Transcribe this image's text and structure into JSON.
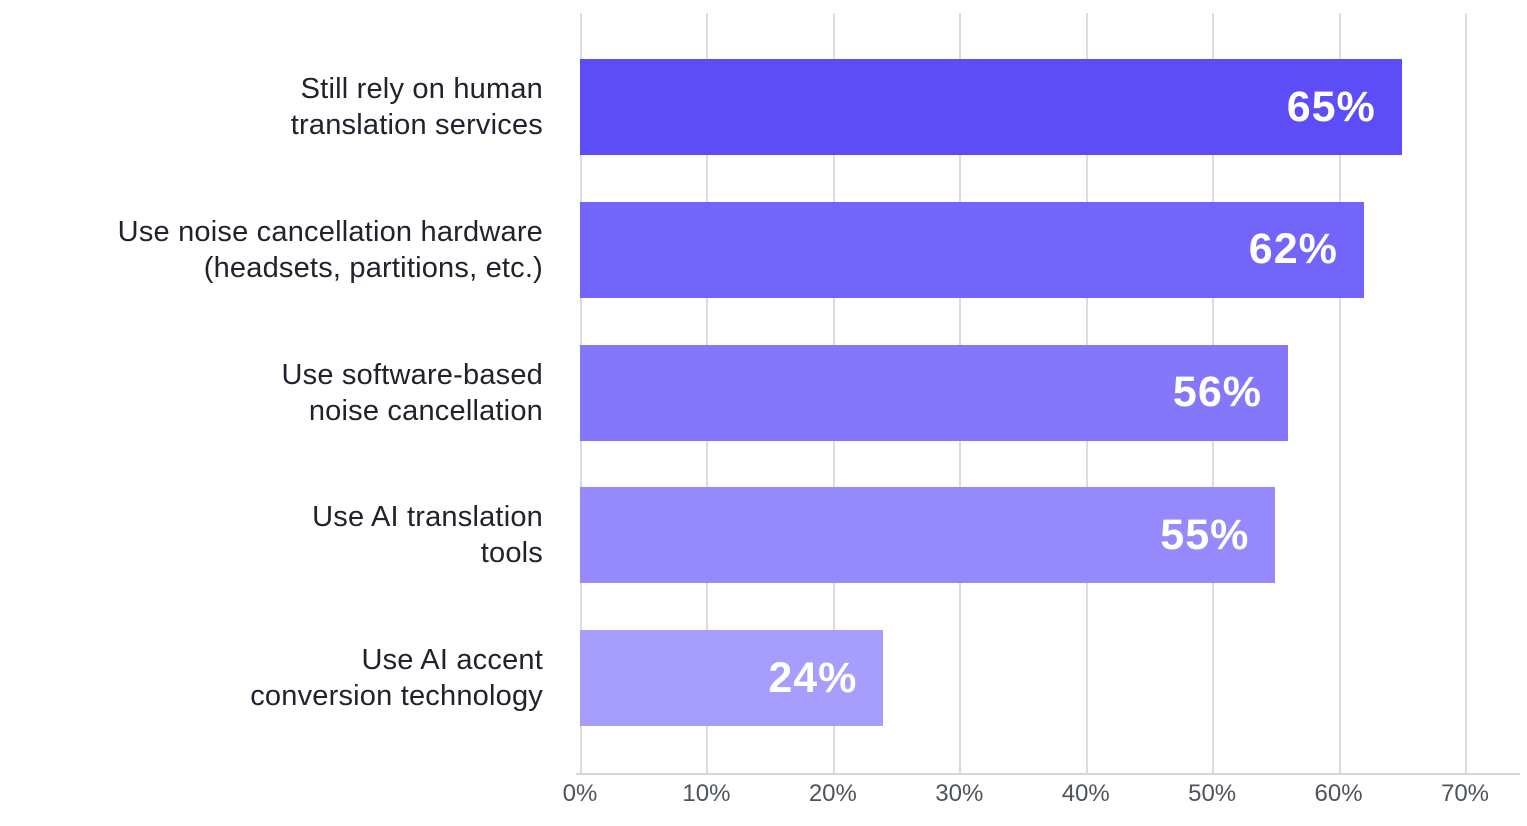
{
  "chart_data": {
    "type": "bar",
    "orientation": "horizontal",
    "title": "",
    "xlabel": "",
    "ylabel": "",
    "xlim": [
      0,
      70
    ],
    "grid": true,
    "legend": false,
    "categories": [
      [
        "Still rely on human",
        "translation services"
      ],
      [
        "Use noise cancellation hardware",
        "(headsets, partitions, etc.)"
      ],
      [
        "Use software-based",
        "noise cancellation"
      ],
      [
        "Use AI translation",
        "tools"
      ],
      [
        "Use AI accent",
        "conversion technology"
      ]
    ],
    "values": [
      65,
      62,
      56,
      55,
      24
    ],
    "value_labels": [
      "65%",
      "62%",
      "56%",
      "55%",
      "24%"
    ],
    "x_tick_labels": [
      "0%",
      "10%",
      "20%",
      "30%",
      "40%",
      "50%",
      "60%",
      "70%"
    ],
    "x_tick_values": [
      0,
      10,
      20,
      30,
      40,
      50,
      60,
      70
    ],
    "bar_colors": [
      "#5d4df6",
      "#7365fa",
      "#8477fa",
      "#9589fb",
      "#a79dfc"
    ],
    "value_label_color": "#ffffff",
    "category_label_color": "#20232e",
    "tick_label_color": "#4f545a",
    "gridline_color": "#dcdcdc",
    "axis_line_color": "#d6d6d6",
    "background_color": "#ffffff"
  }
}
